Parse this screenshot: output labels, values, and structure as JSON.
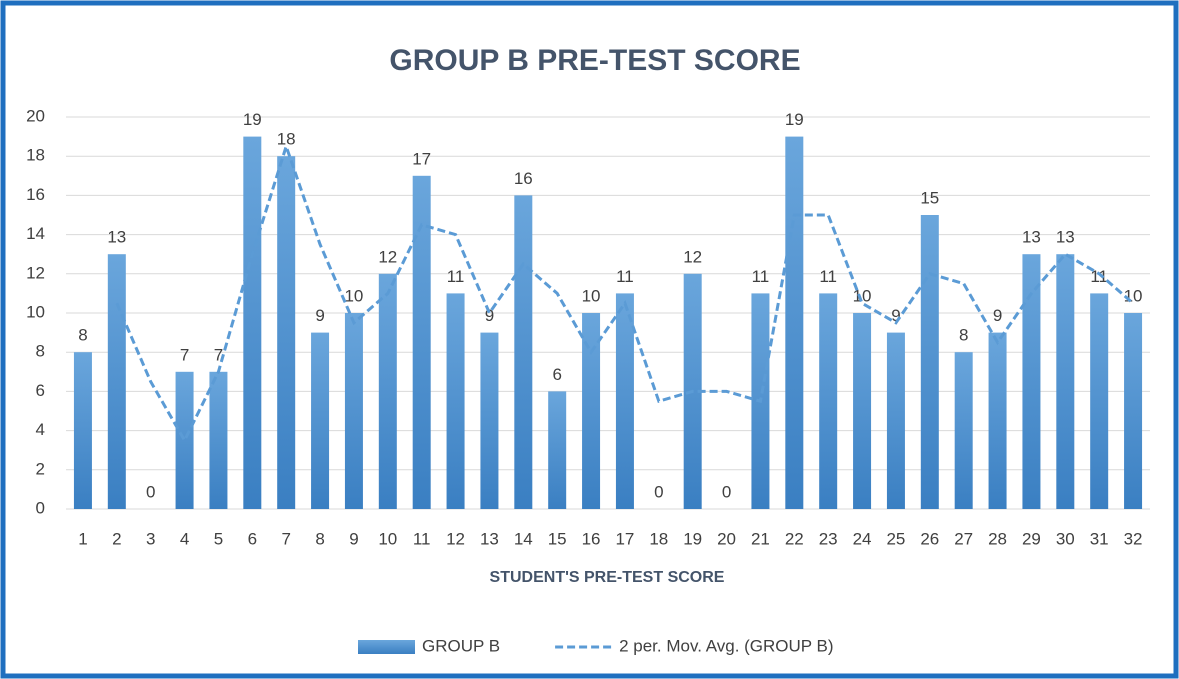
{
  "chart_data": {
    "type": "bar",
    "title": "GROUP B PRE-TEST SCORE",
    "x_label": "STUDENT'S PRE-TEST SCORE",
    "categories": [
      1,
      2,
      3,
      4,
      5,
      6,
      7,
      8,
      9,
      10,
      11,
      12,
      13,
      14,
      15,
      16,
      17,
      18,
      19,
      20,
      21,
      22,
      23,
      24,
      25,
      26,
      27,
      28,
      29,
      30,
      31,
      32
    ],
    "series": [
      {
        "name": "GROUP B",
        "type": "bar",
        "color": "#5b9bd5",
        "values": [
          8,
          13,
          0,
          7,
          7,
          19,
          18,
          9,
          10,
          12,
          17,
          11,
          9,
          16,
          6,
          10,
          11,
          0,
          12,
          0,
          11,
          19,
          11,
          10,
          9,
          15,
          8,
          9,
          13,
          13,
          11,
          10
        ]
      },
      {
        "name": "2 per. Mov. Avg. (GROUP B)",
        "type": "line",
        "color": "#5b9bd5",
        "dashed": true,
        "values": [
          null,
          10.5,
          6.5,
          3.5,
          7,
          13,
          18.5,
          13.5,
          9.5,
          11,
          14.5,
          14,
          10,
          12.5,
          11,
          8,
          10.5,
          5.5,
          6,
          6,
          5.5,
          15,
          15,
          10.5,
          9.5,
          12,
          11.5,
          8.5,
          11,
          13,
          12,
          10.5
        ]
      }
    ],
    "ylim": [
      0,
      20
    ],
    "yticks": [
      0,
      2,
      4,
      6,
      8,
      10,
      12,
      14,
      16,
      18,
      20
    ],
    "grid": true,
    "data_labels": true,
    "legend": "bottom"
  }
}
